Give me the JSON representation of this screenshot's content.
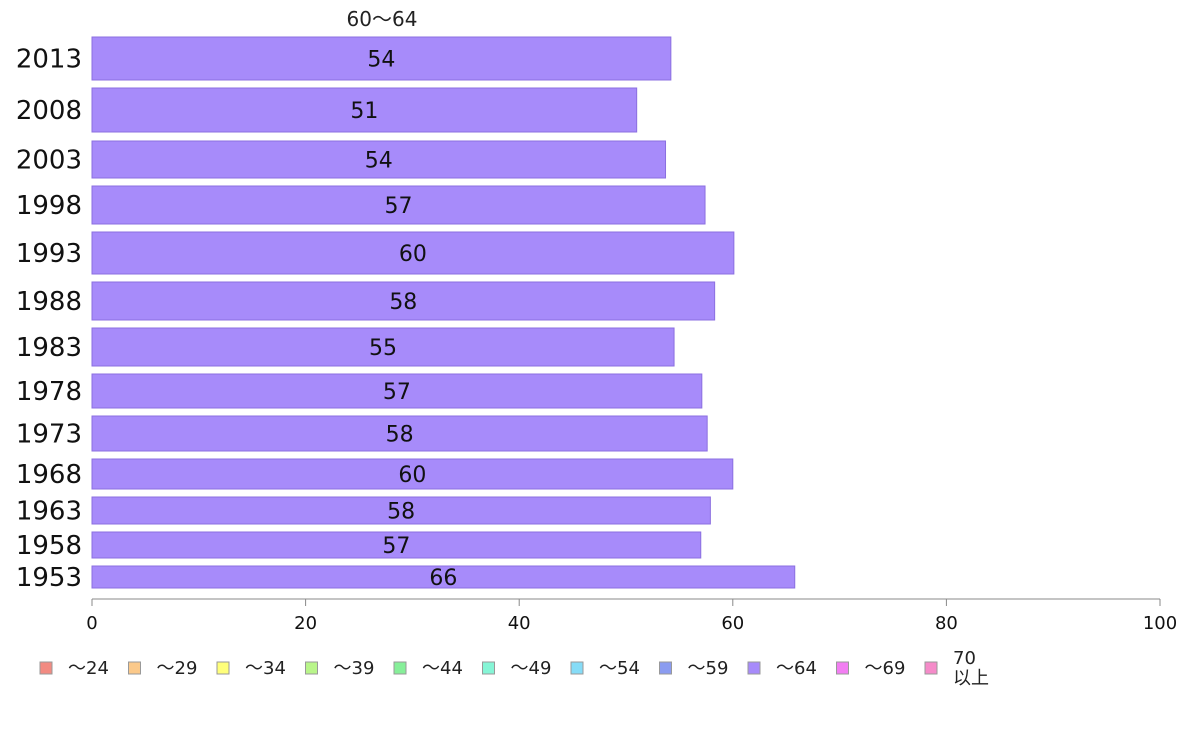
{
  "chart_data": {
    "type": "bar",
    "orientation": "horizontal",
    "title": "60〜64",
    "categories": [
      "2013",
      "2008",
      "2003",
      "1998",
      "1993",
      "1988",
      "1983",
      "1978",
      "1973",
      "1968",
      "1963",
      "1958",
      "1953"
    ],
    "series": [
      {
        "name": "〜64",
        "values": [
          54,
          51,
          54,
          57,
          60,
          58,
          55,
          57,
          58,
          60,
          58,
          57,
          66
        ]
      }
    ],
    "bar_value_estimates": [
      54.2,
      51.0,
      53.7,
      57.4,
      60.1,
      58.3,
      54.5,
      57.1,
      57.6,
      60.0,
      57.9,
      57.0,
      65.8
    ],
    "xlim": [
      0,
      100
    ],
    "xticks": [
      "0",
      "20",
      "40",
      "60",
      "80",
      "100"
    ],
    "xlabel": "",
    "ylabel": "",
    "grid": false,
    "legend_position": "bottom",
    "bar_color": "#a78bfa",
    "bar_border_color": "#8b6fe0",
    "legend": [
      {
        "label": "〜24",
        "color": "#f28b82"
      },
      {
        "label": "〜29",
        "color": "#fbc98a"
      },
      {
        "label": "〜34",
        "color": "#ffff7a"
      },
      {
        "label": "〜39",
        "color": "#b9f58a"
      },
      {
        "label": "〜44",
        "color": "#86ef99"
      },
      {
        "label": "〜49",
        "color": "#86f5d6"
      },
      {
        "label": "〜54",
        "color": "#86dcf7"
      },
      {
        "label": "〜59",
        "color": "#8b9cf0"
      },
      {
        "label": "〜64",
        "color": "#a78bfa"
      },
      {
        "label": "〜69",
        "color": "#f27ef2"
      },
      {
        "label": "70\n以上",
        "color": "#f58bc9"
      }
    ]
  }
}
